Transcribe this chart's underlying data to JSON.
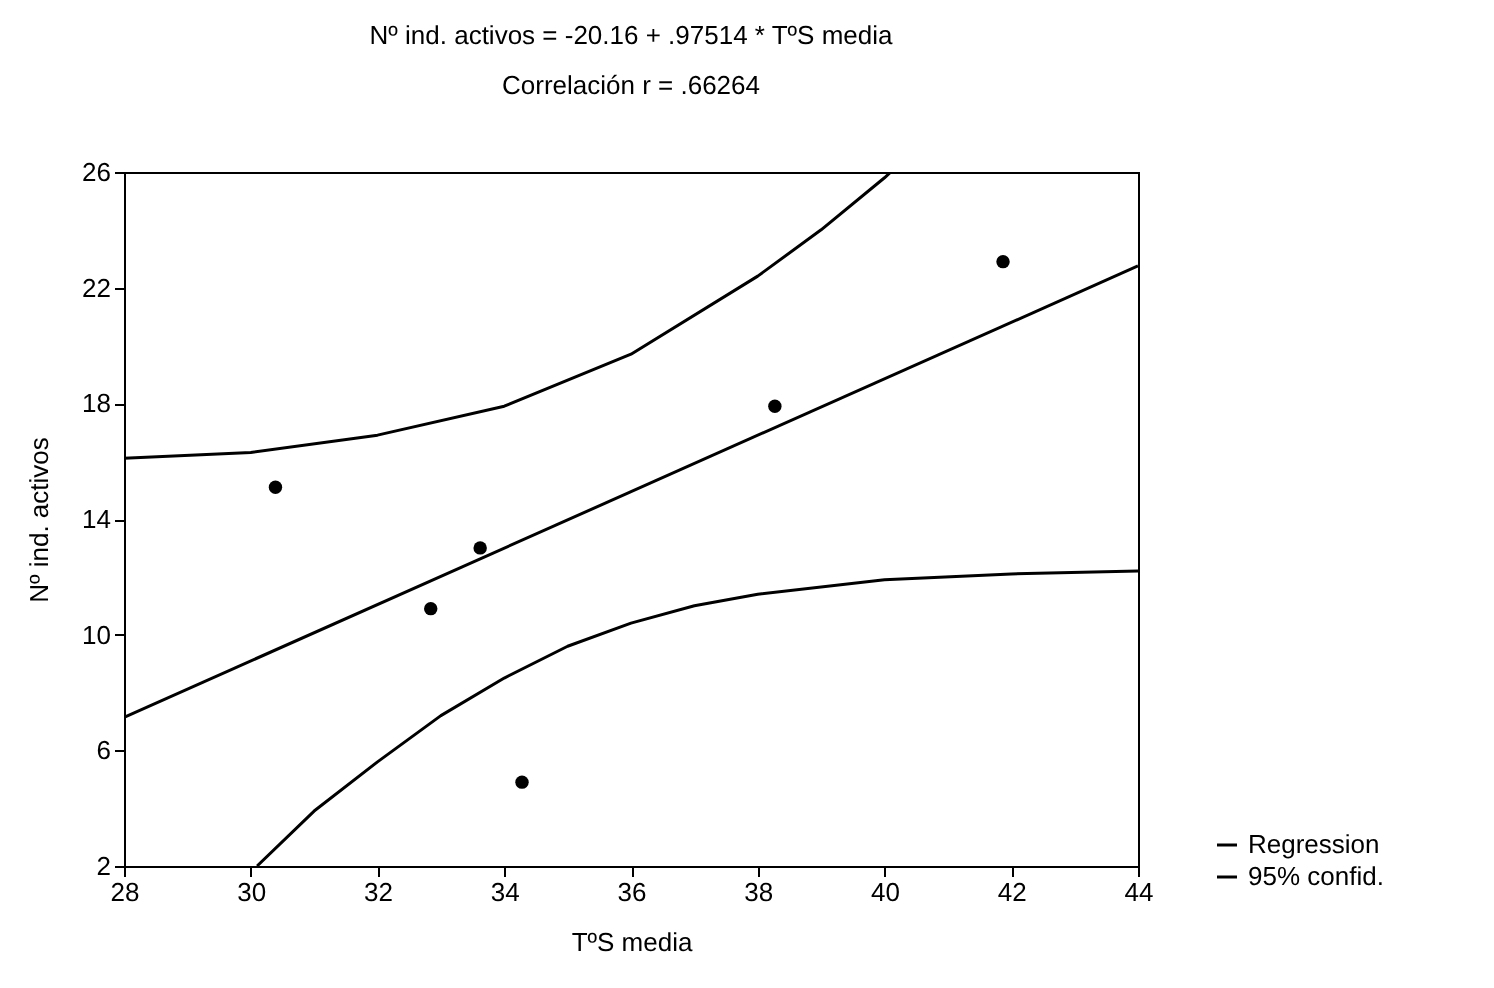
{
  "chart_data": {
    "type": "scatter",
    "title": "Nº ind. activos = -20.16 + .97514 * TºS media",
    "subtitle": "Correlación r = .66264",
    "xlabel": "TºS media",
    "ylabel": "Nº ind. activos",
    "xlim": [
      28,
      44
    ],
    "ylim": [
      2,
      26
    ],
    "xticks": [
      28,
      30,
      32,
      34,
      36,
      38,
      40,
      42,
      44
    ],
    "yticks": [
      2,
      6,
      10,
      14,
      18,
      22,
      26
    ],
    "grid": false,
    "legend": "bottom right",
    "marker": "circle",
    "series": [
      {
        "color": "#000000",
        "x": [
          30.39,
          32.84,
          33.62,
          34.28,
          38.27,
          41.87
        ],
        "values": [
          15.1,
          10.9,
          13.0,
          4.9,
          17.9,
          22.9
        ]
      },
      {
        "type": "line",
        "name": "Regression",
        "color": "#000000",
        "marker": "none",
        "x": [
          28,
          44
        ],
        "values": [
          7.14,
          22.75
        ]
      },
      {
        "type": "line",
        "name": "95% confid.",
        "color": "#000000",
        "marker": "none",
        "x": [
          28,
          30,
          32,
          34,
          36,
          38,
          39,
          40,
          40.1
        ],
        "values": [
          16.1,
          16.3,
          16.9,
          17.9,
          19.7,
          22.4,
          24.0,
          25.8,
          26
        ]
      },
      {
        "type": "line",
        "color": "#000000",
        "marker": "none",
        "x": [
          30.1,
          31,
          32,
          33,
          34,
          35,
          36,
          37,
          38,
          40,
          42,
          44
        ],
        "values": [
          2,
          3.9,
          5.6,
          7.2,
          8.5,
          9.6,
          10.4,
          11.0,
          11.4,
          11.9,
          12.1,
          12.2
        ]
      }
    ]
  }
}
